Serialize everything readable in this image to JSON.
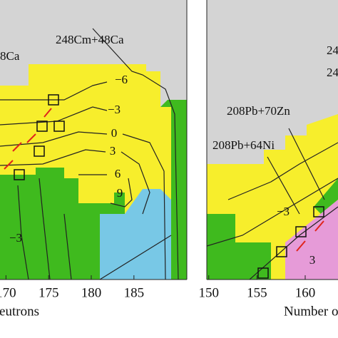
{
  "chart_data": [
    {
      "type": "contour",
      "xlim": [
        169.3,
        191.2
      ],
      "xticks": [
        170,
        175,
        180,
        185
      ],
      "xlabel": "Number of neutrons",
      "annotations": [
        "248Cm+48Ca",
        "8Ca"
      ],
      "contour_labels": [
        "−6",
        "−3",
        "0",
        "3",
        "6",
        "9",
        "−3"
      ]
    },
    {
      "type": "contour",
      "xlim": [
        149.8,
        163.4
      ],
      "xticks": [
        150,
        155,
        160
      ],
      "xlabel": "Number of neutrons",
      "annotations": [
        "208Pb+70Zn",
        "208Pb+64Ni",
        "24",
        "24"
      ],
      "contour_labels": [
        "−3",
        "3"
      ]
    }
  ]
}
